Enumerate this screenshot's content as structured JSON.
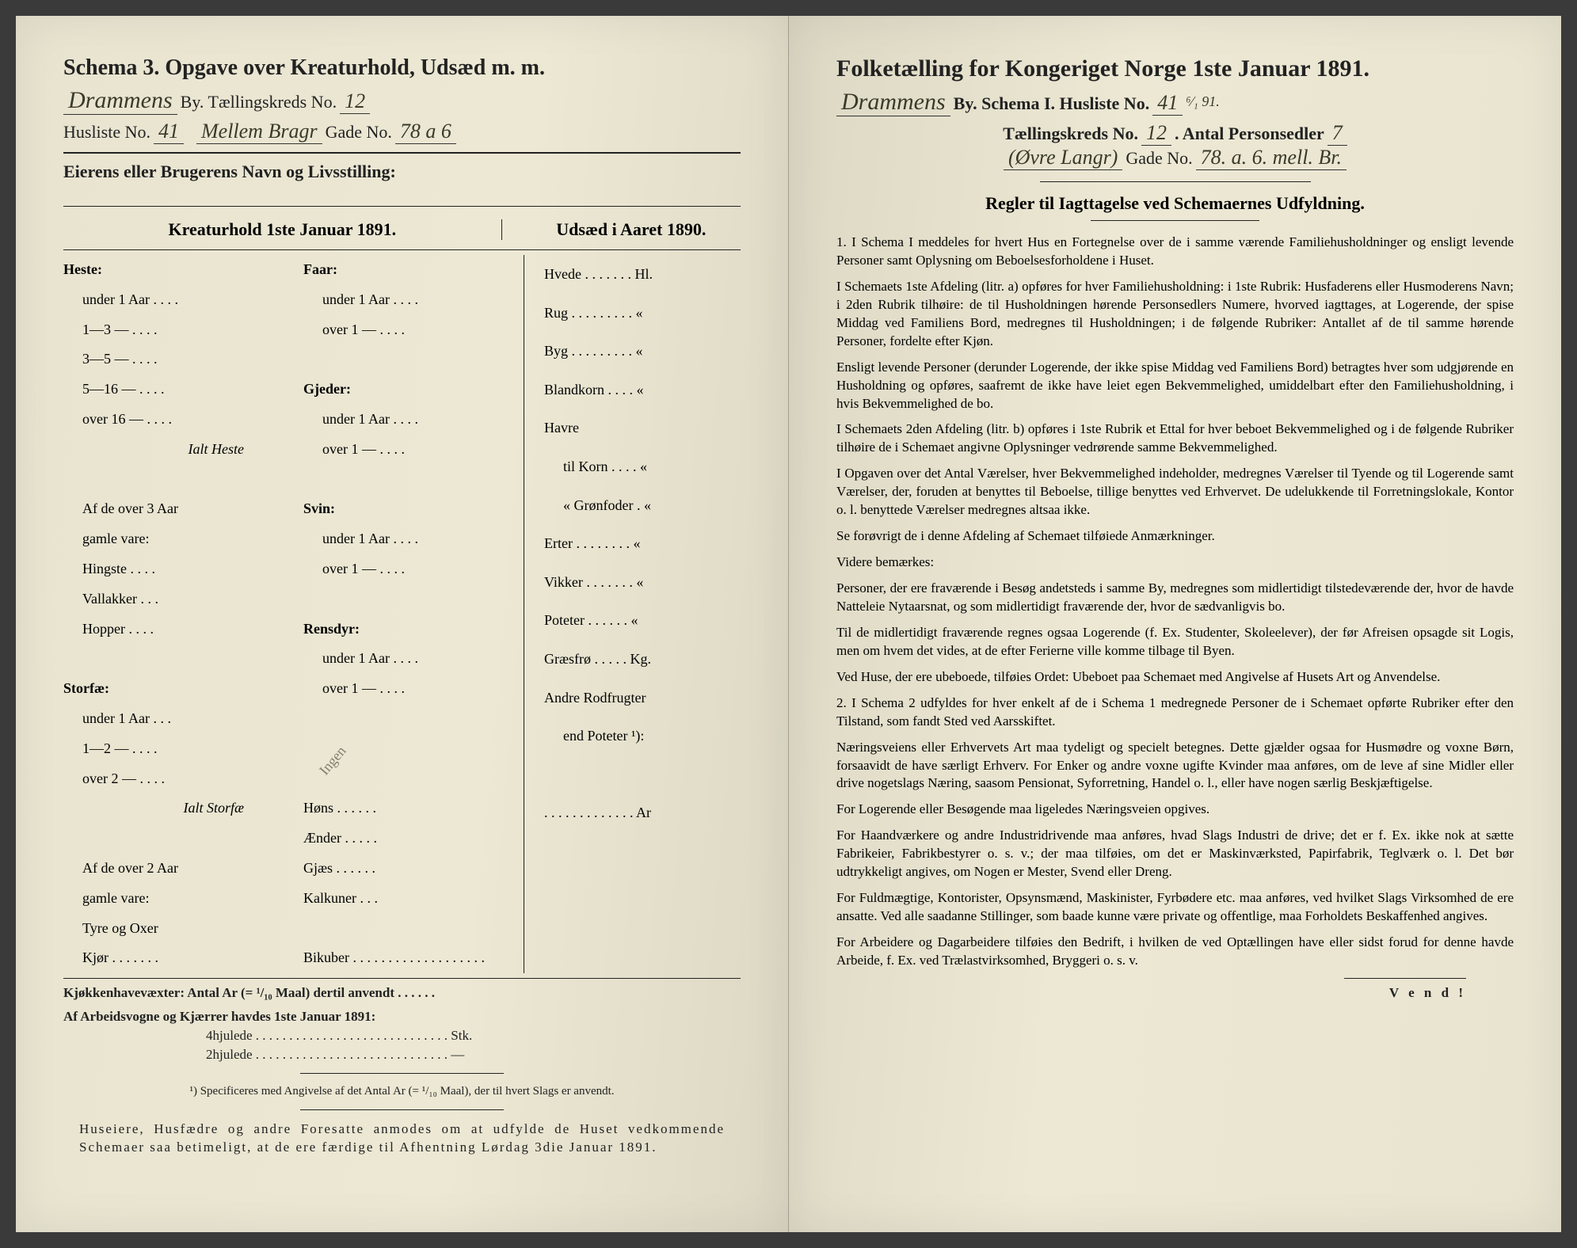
{
  "left": {
    "title": "Schema 3.  Opgave over Kreaturhold, Udsæd m. m.",
    "city_hand": "Drammens",
    "by_label": "By.  Tællingskreds No.",
    "kreds_no": "12",
    "husliste_label": "Husliste No.",
    "husliste_no": "41",
    "street_hand": "Mellem Bragr",
    "gade_label": "Gade No.",
    "gade_no": "78 a 6",
    "owner_label": "Eierens eller Brugerens Navn og Livsstilling:",
    "col_head_left": "Kreaturhold 1ste Januar 1891.",
    "col_head_right": "Udsæd i Aaret 1890.",
    "scribble": "Ingen",
    "rows_left_a": [
      "Heste:",
      "   under 1  Aar . . . .",
      "   1—3   —   . . . .",
      "   3—5   —   . . . .",
      "   5—16  —   . . . .",
      "   over 16 —   . . . .",
      "               Ialt Heste",
      "",
      "   Af de over 3 Aar",
      "   gamle vare:",
      "     Hingste . . . .",
      "     Vallakker . . .",
      "     Hopper . . . .",
      "",
      "Storfæ:",
      "   under 1 Aar . . .",
      "   1—2   —   . . . .",
      "   over 2  —   . . . .",
      "               Ialt Storfæ",
      "",
      "   Af de over 2 Aar",
      "   gamle vare:",
      "     Tyre og Oxer",
      "     Kjør . . . . . . ."
    ],
    "rows_left_b": [
      "Faar:",
      "   under 1  Aar . . . .",
      "   over 1   —   . . . .",
      "",
      "Gjeder:",
      "   under 1  Aar . . . .",
      "   over 1   —   . . . .",
      "",
      "Svin:",
      "   under 1  Aar . . . .",
      "   over 1   —   . . . .",
      "",
      "Rensdyr:",
      "   under 1  Aar . . . .",
      "   over 1   —   . . . .",
      "",
      "",
      "",
      "Høns . . . . . .",
      "Ænder . . . . .",
      "Gjæs . . . . . .",
      "Kalkuner . . .",
      "",
      "Bikuber . . . . . . . . . . . . . . . . . . ."
    ],
    "rows_right": [
      "Hvede . . . . . . . Hl.",
      "Rug . . . . . . . . .  «",
      "Byg . . . . . . . . .  «",
      "Blandkorn . . . .  «",
      "Havre",
      "   til Korn . . . .  «",
      "   « Grønfoder .  «",
      "Erter . . . . . . . .  «",
      "Vikker . . . . . . .  «",
      "Poteter . . . . . .  «",
      "Græsfrø . . . . . Kg.",
      "Andre Rodfrugter",
      "   end Poteter ¹):",
      "",
      ". . . . . . . . . . . . . Ar"
    ],
    "footer1": "Kjøkkenhavevæxter:   Antal Ar (= ¹/₁₀ Maal) dertil anvendt . . . . . .",
    "footer2": "Af Arbeidsvogne og Kjærrer havdes 1ste Januar 1891:",
    "footer3": "4hjulede . . . . . . . . . . . . . . . . . . . . . . . . . . . . .  Stk.",
    "footer4": "2hjulede . . . . . . . . . . . . . . . . . . . . . . . . . . . . .   —",
    "footnote": "¹) Specificeres med Angivelse af det Antal Ar (= ¹/₁₀ Maal), der til hvert Slags er anvendt.",
    "closing": "Huseiere, Husfædre og andre Foresatte anmodes om at udfylde de Huset vedkommende Schemaer saa betimeligt, at de ere færdige til Afhentning Lørdag 3die Januar 1891."
  },
  "right": {
    "title": "Folketælling for Kongeriget Norge 1ste Januar 1891.",
    "city_hand": "Drammens",
    "by_label": "By.   Schema I.   Husliste No.",
    "husliste_no": "41",
    "date_frac": "⁶⁄₁ 91.",
    "kreds_label": "Tællingskreds No.",
    "kreds_no": "12",
    "antal_label": ".   Antal Personsedler",
    "antal_no": "7",
    "street_hand": "(Øvre Langr)",
    "gade_label": "Gade No.",
    "gade_no": "78. a. 6.  mell. Br.",
    "rules_header": "Regler til Iagttagelse ved Schemaernes Udfyldning.",
    "paras": [
      "1. I Schema I meddeles for hvert Hus en Fortegnelse over de i samme værende Familiehusholdninger og ensligt levende Personer samt Oplysning om Beboelsesforholdene i Huset.",
      "I Schemaets 1ste Afdeling (litr. a) opføres for hver Familiehusholdning: i 1ste Rubrik: Husfaderens eller Husmoderens Navn; i 2den Rubrik tilhøire: de til Husholdningen hørende Personsedlers Numere, hvorved iagttages, at Logerende, der spise Middag ved Familiens Bord, medregnes til Husholdningen; i de følgende Rubriker: Antallet af de til samme hørende Personer, fordelte efter Kjøn.",
      "Ensligt levende Personer (derunder Logerende, der ikke spise Middag ved Familiens Bord) betragtes hver som udgjørende en Husholdning og opføres, saafremt de ikke have leiet egen Bekvemmelighed, umiddelbart efter den Familiehusholdning, i hvis Bekvemmelighed de bo.",
      "I Schemaets 2den Afdeling (litr. b) opføres i 1ste Rubrik et Ettal for hver beboet Bekvemmelighed og i de følgende Rubriker tilhøire de i Schemaet angivne Oplysninger vedrørende samme Bekvemmelighed.",
      "I Opgaven over det Antal Værelser, hver Bekvemmelighed indeholder, medregnes Værelser til Tyende og til Logerende samt Værelser, der, foruden at benyttes til Beboelse, tillige benyttes ved Erhvervet. De udelukkende til Forretningslokale, Kontor o. l. benyttede Værelser medregnes altsaa ikke.",
      "Se forøvrigt de i denne Afdeling af Schemaet tilføiede Anmærkninger.",
      "Videre bemærkes:",
      "Personer, der ere fraværende i Besøg andetsteds i samme By, medregnes som midlertidigt tilstedeværende der, hvor de havde Natteleie Nytaarsnat, og som midlertidigt fraværende der, hvor de sædvanligvis bo.",
      "Til de midlertidigt fraværende regnes ogsaa Logerende (f. Ex. Studenter, Skoleelever), der før Afreisen opsagde sit Logis, men om hvem det vides, at de efter Ferierne ville komme tilbage til Byen.",
      "Ved Huse, der ere ubeboede, tilføies Ordet: Ubeboet paa Schemaet med Angivelse af Husets Art og Anvendelse.",
      "2. I Schema 2 udfyldes for hver enkelt af de i Schema 1 medregnede Personer de i Schemaet opførte Rubriker efter den Tilstand, som fandt Sted ved Aarsskiftet.",
      "Næringsveiens eller Erhvervets Art maa tydeligt og specielt betegnes. Dette gjælder ogsaa for Husmødre og voxne Børn, forsaavidt de have særligt Erhverv. For Enker og andre voxne ugifte Kvinder maa anføres, om de leve af sine Midler eller drive nogetslags Næring, saasom Pensionat, Syforretning, Handel o. l., eller have nogen særlig Beskjæftigelse.",
      "For Logerende eller Besøgende maa ligeledes Næringsveien opgives.",
      "For Haandværkere og andre Industridrivende maa anføres, hvad Slags Industri de drive; det er f. Ex. ikke nok at sætte Fabrikeier, Fabrikbestyrer o. s. v.; der maa tilføies, om det er Maskinværksted, Papirfabrik, Teglværk o. l.  Det bør udtrykkeligt angives, om Nogen er Mester, Svend eller Dreng.",
      "For Fuldmægtige, Kontorister, Opsynsmænd, Maskinister, Fyrbødere etc. maa anføres, ved hvilket Slags Virksomhed de ere ansatte. Ved alle saadanne Stillinger, som baade kunne være private og offentlige, maa Forholdets Beskaffenhed angives.",
      "For Arbeidere og Dagarbeidere tilføies den Bedrift, i hvilken de ved Optællingen have eller sidst forud for denne havde Arbeide, f. Ex. ved Trælastvirksomhed, Bryggeri o. s. v."
    ],
    "vend": "V e n d !"
  }
}
